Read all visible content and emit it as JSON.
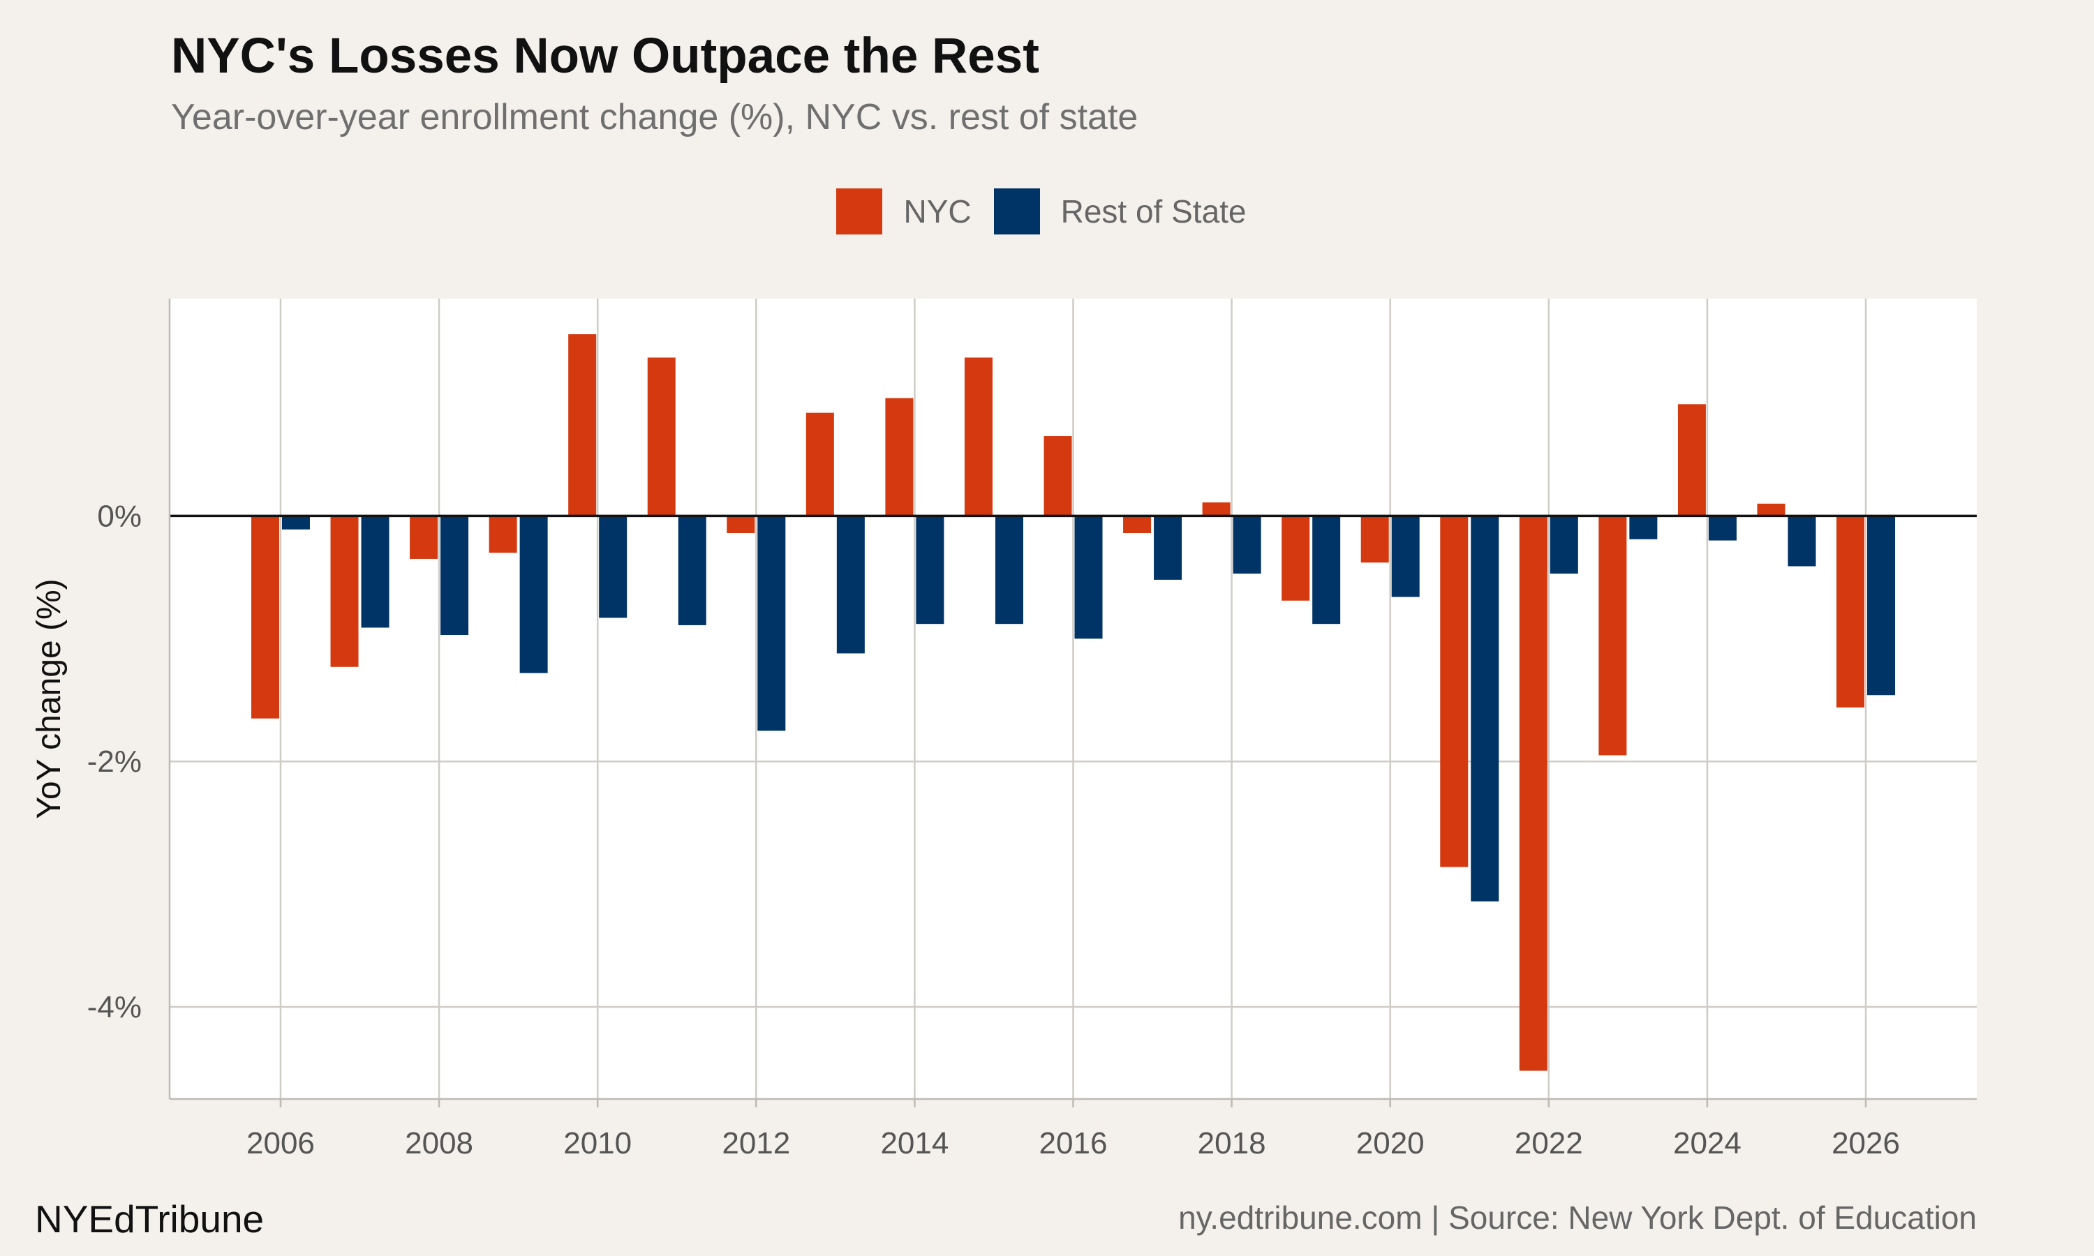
{
  "title": "NYC's Losses Now Outpace the Rest",
  "subtitle": "Year-over-year enrollment change (%), NYC vs. rest of state",
  "brand": "NYEdTribune",
  "source": "ny.edtribune.com | Source: New York Dept. of Education",
  "colors": {
    "nyc": "#d4390f",
    "rest": "#003366",
    "panel": "#ffffff",
    "background": "#f4f1ec",
    "grid": "#cfccc6",
    "zero_line": "#111111"
  },
  "chart_data": {
    "type": "bar",
    "ylabel": "YoY change (%)",
    "xlabel": "",
    "legend_position": "top",
    "grid": true,
    "ylim": [
      -4.75,
      1.77
    ],
    "xlim": [
      2004.6,
      2027.4
    ],
    "y_ticks": [
      0,
      -2,
      -4
    ],
    "y_tick_labels": [
      "0%",
      "-2%",
      "-4%"
    ],
    "x_ticks": [
      2006,
      2008,
      2010,
      2012,
      2014,
      2016,
      2018,
      2020,
      2022,
      2024,
      2026
    ],
    "x_tick_labels": [
      "2006",
      "2008",
      "2010",
      "2012",
      "2014",
      "2016",
      "2018",
      "2020",
      "2022",
      "2024",
      "2026"
    ],
    "categories": [
      2006,
      2007,
      2008,
      2009,
      2010,
      2011,
      2012,
      2013,
      2014,
      2015,
      2016,
      2017,
      2018,
      2019,
      2020,
      2021,
      2022,
      2023,
      2024,
      2025,
      2026
    ],
    "series": [
      {
        "name": "NYC",
        "values": [
          -1.65,
          -1.23,
          -0.35,
          -0.3,
          1.48,
          1.29,
          -0.14,
          0.84,
          0.96,
          1.29,
          0.65,
          -0.14,
          0.11,
          -0.69,
          -0.38,
          -2.86,
          -4.52,
          -1.95,
          0.91,
          0.1,
          -1.56
        ]
      },
      {
        "name": "Rest of State",
        "values": [
          -0.11,
          -0.91,
          -0.97,
          -1.28,
          -0.83,
          -0.89,
          -1.75,
          -1.12,
          -0.88,
          -0.88,
          -1.0,
          -0.52,
          -0.47,
          -0.88,
          -0.66,
          -3.14,
          -0.47,
          -0.19,
          -0.2,
          -0.41,
          -1.46
        ]
      }
    ]
  }
}
